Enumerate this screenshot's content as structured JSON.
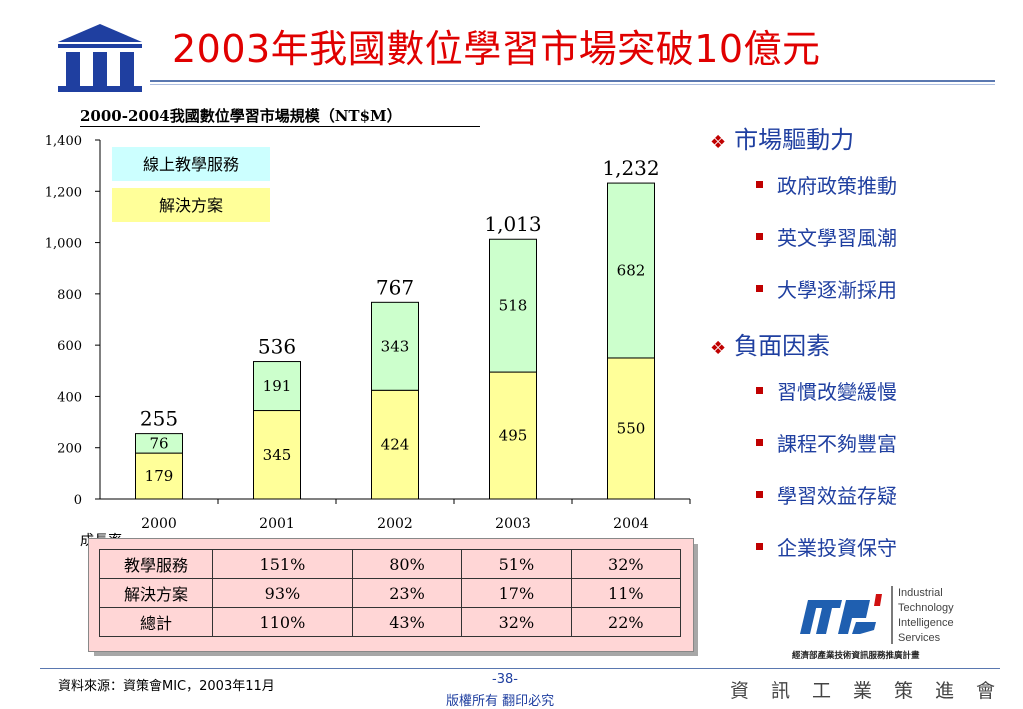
{
  "header": {
    "title": "2003年我國數位學習市場突破10億元"
  },
  "chart_title": "2000-2004我國數位學習市場規模（NT$M）",
  "colors": {
    "service": "#ccffcc",
    "solution": "#ffff99",
    "legend_service_bg": "#ccffff",
    "title": "#e00000",
    "accent_blue": "#1f3fa0"
  },
  "chart_data": {
    "type": "bar",
    "stacked": true,
    "title": "2000-2004我國數位學習市場規模（NT$M）",
    "categories": [
      "2000",
      "2001",
      "2002",
      "2003",
      "2004"
    ],
    "series": [
      {
        "name": "解決方案",
        "values": [
          179,
          345,
          424,
          495,
          550
        ],
        "color": "#ffff99"
      },
      {
        "name": "線上教學服務",
        "values": [
          76,
          191,
          343,
          518,
          682
        ],
        "color": "#ccffcc"
      }
    ],
    "totals": [
      255,
      536,
      767,
      1013,
      1232
    ],
    "total_labels": [
      "255",
      "536",
      "767",
      "1,013",
      "1,232"
    ],
    "ylim": [
      0,
      1400
    ],
    "yticks": [
      0,
      200,
      400,
      600,
      800,
      1000,
      1200,
      1400
    ],
    "ytick_labels": [
      "0",
      "200",
      "400",
      "600",
      "800",
      "1,000",
      "1,200",
      "1,400"
    ],
    "grid": false,
    "legend": "top-left"
  },
  "growth": {
    "label": "成長率",
    "rows": [
      {
        "name": "教學服務",
        "values": [
          "151%",
          "80%",
          "51%",
          "32%"
        ]
      },
      {
        "name": "解決方案",
        "values": [
          "93%",
          "23%",
          "17%",
          "11%"
        ]
      },
      {
        "name": "總計",
        "values": [
          "110%",
          "43%",
          "32%",
          "22%"
        ]
      }
    ]
  },
  "bullets": {
    "sections": [
      {
        "title": "市場驅動力",
        "items": [
          "政府政策推動",
          "英文學習風潮",
          "大學逐漸採用"
        ]
      },
      {
        "title": "負面因素",
        "items": [
          "習慣改變緩慢",
          "課程不夠豐富",
          "學習效益存疑",
          "企業投資保守"
        ]
      }
    ]
  },
  "itis_logo": {
    "text_lines": [
      "Industrial",
      "Technology",
      "Intelligence",
      "Services"
    ],
    "caption": "經濟部產業技術資訊服務推廣計畫"
  },
  "footer": {
    "source": "資料來源：資策會MIC，2003年11月",
    "page": "-38-",
    "copyright": "版權所有  翻印必究",
    "org": "資訊工業策進會"
  }
}
